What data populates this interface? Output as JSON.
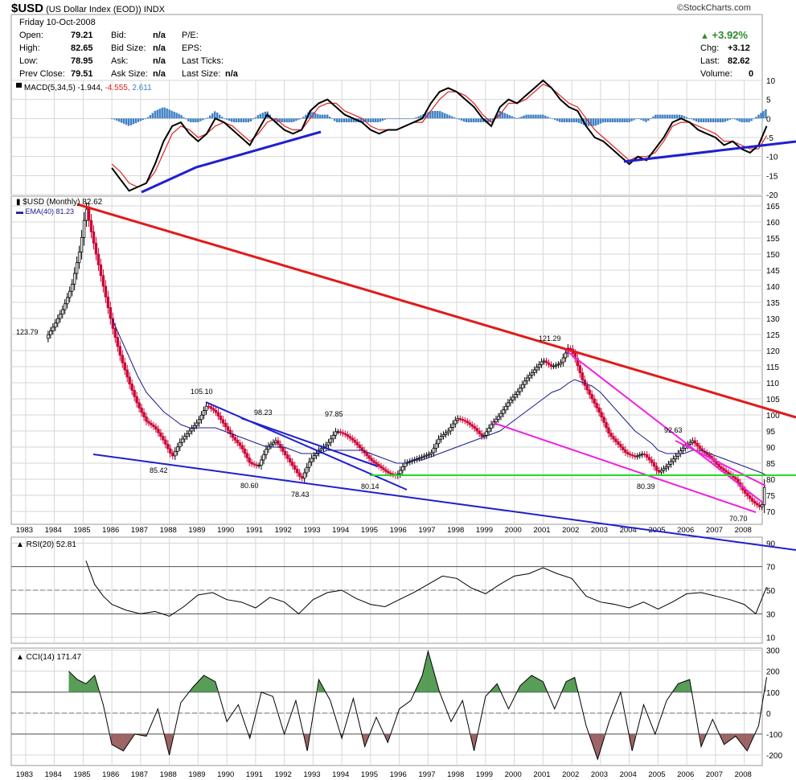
{
  "header": {
    "symbol": "$USD",
    "name": "(US Dollar Index (EOD))",
    "exchange": "INDX",
    "credit": "©StockCharts.com",
    "date": "Friday  10-Oct-2008",
    "quotes": {
      "open_label": "Open:",
      "open": "79.21",
      "high_label": "High:",
      "high": "82.65",
      "low_label": "Low:",
      "low": "78.95",
      "prev_label": "Prev Close:",
      "prev": "79.51",
      "bid_label": "Bid:",
      "bid": "n/a",
      "bidsize_label": "Bid Size:",
      "bidsize": "n/a",
      "ask_label": "Ask:",
      "ask": "n/a",
      "asksize_label": "Ask Size:",
      "asksize": "n/a",
      "pe_label": "P/E:",
      "eps_label": "EPS:",
      "lastticks_label": "Last Ticks:",
      "lastsize_label": "Last Size:",
      "lastsize": "n/a",
      "pct": "+3.92%",
      "chg_label": "Chg:",
      "chg": "+3.12",
      "last_label": "Last:",
      "last": "82.62",
      "volume_label": "Volume:",
      "volume": "0"
    }
  },
  "colors": {
    "grid": "#d6d6d6",
    "up_candle": "#000000",
    "down_candle": "#cc0033",
    "ema": "#1a1a8c",
    "macd_line": "#000000",
    "signal_line": "#dd2222",
    "histogram": "#3d7fc4",
    "trend_blue": "#1f1fcf",
    "trend_red": "#e01b1b",
    "trend_magenta": "#ee22dd",
    "support_green": "#22dd22",
    "cci_fill_pos": "#3b8c3b",
    "cci_fill_neg": "#8c4a4a"
  },
  "chart_data": [
    {
      "type": "line",
      "panel": "MACD",
      "title": "MACD(5,34,5)",
      "values_text": [
        "-1.944",
        "-4.555",
        "2.611"
      ],
      "ylim": [
        -20,
        10
      ],
      "y_ticks": [
        10,
        5,
        0,
        -5,
        -10,
        -15,
        -20
      ],
      "x": [
        1986.0,
        1986.3,
        1986.6,
        1986.9,
        1987.2,
        1987.5,
        1987.8,
        1988.1,
        1988.4,
        1988.7,
        1989.0,
        1989.3,
        1989.6,
        1989.9,
        1990.2,
        1990.5,
        1990.8,
        1991.1,
        1991.4,
        1991.7,
        1992.0,
        1992.3,
        1992.6,
        1992.9,
        1993.2,
        1993.5,
        1993.8,
        1994.1,
        1994.4,
        1994.7,
        1995.0,
        1995.3,
        1995.6,
        1995.9,
        1996.2,
        1996.5,
        1996.8,
        1997.1,
        1997.4,
        1997.7,
        1998.0,
        1998.3,
        1998.6,
        1998.9,
        1999.2,
        1999.5,
        1999.8,
        2000.1,
        2000.4,
        2000.7,
        2001.0,
        2001.3,
        2001.6,
        2001.9,
        2002.2,
        2002.5,
        2002.8,
        2003.1,
        2003.4,
        2003.7,
        2004.0,
        2004.3,
        2004.6,
        2004.9,
        2005.2,
        2005.5,
        2005.8,
        2006.1,
        2006.4,
        2006.7,
        2007.0,
        2007.3,
        2007.6,
        2007.9,
        2008.2,
        2008.5,
        2008.78
      ],
      "series": [
        {
          "name": "MACD",
          "values": [
            -13,
            -16,
            -19,
            -18,
            -17,
            -12,
            -6,
            -2,
            -1,
            -4,
            -6,
            -4,
            0,
            -1,
            -3,
            -5,
            -7,
            -3,
            1,
            -1,
            -3,
            -4,
            -3,
            2,
            4,
            5,
            3,
            1,
            0,
            -1,
            -3,
            -4,
            -3,
            -3,
            -2,
            -1,
            0,
            4,
            7,
            8,
            7,
            5,
            3,
            0,
            -2,
            3,
            5,
            4,
            6,
            8,
            10,
            8,
            5,
            3,
            2,
            -2,
            -5,
            -6,
            -8,
            -10,
            -12,
            -10,
            -11,
            -8,
            -5,
            -1,
            0,
            -1,
            -3,
            -4,
            -5,
            -7,
            -6,
            -8,
            -9,
            -7,
            -2
          ]
        },
        {
          "name": "Signal",
          "values": [
            -12,
            -14,
            -17,
            -18,
            -17,
            -14,
            -9,
            -4,
            -2,
            -3,
            -5,
            -4,
            -2,
            -1,
            -2,
            -4,
            -6,
            -4,
            -1,
            0,
            -2,
            -3,
            -3,
            0,
            3,
            4,
            4,
            2,
            1,
            0,
            -2,
            -3,
            -3,
            -3,
            -2,
            -1,
            -1,
            2,
            5,
            7,
            7,
            6,
            4,
            1,
            -1,
            1,
            4,
            4,
            5,
            7,
            9,
            8,
            6,
            4,
            3,
            0,
            -3,
            -5,
            -7,
            -9,
            -11,
            -10,
            -10,
            -9,
            -6,
            -2,
            -1,
            -1,
            -2,
            -3,
            -4,
            -6,
            -6,
            -7,
            -8,
            -8,
            -4.5
          ]
        },
        {
          "name": "Histogram",
          "values": [
            0,
            -1,
            -2,
            -1,
            0,
            2,
            3,
            2,
            1,
            -1,
            -1,
            0,
            2,
            0,
            -1,
            -1,
            -1,
            1,
            2,
            -1,
            -1,
            -1,
            0,
            2,
            1,
            1,
            -1,
            -1,
            -1,
            -1,
            -1,
            -1,
            0,
            0,
            0,
            0,
            1,
            2,
            2,
            1,
            0,
            -1,
            -1,
            -1,
            -1,
            2,
            1,
            0,
            1,
            1,
            1,
            0,
            -1,
            -1,
            -1,
            -2,
            -2,
            -1,
            -1,
            -1,
            -1,
            0,
            -1,
            1,
            1,
            1,
            1,
            0,
            -1,
            -1,
            -1,
            -1,
            0,
            -1,
            -1,
            1,
            2.6
          ]
        }
      ]
    },
    {
      "type": "line",
      "panel": "Price",
      "title": "$USD (Monthly) 82.62",
      "ema_label": "EMA(40) 81.23",
      "ylim": [
        66,
        168
      ],
      "y_ticks": [
        165,
        160,
        155,
        150,
        145,
        140,
        135,
        130,
        125,
        120,
        115,
        110,
        105,
        100,
        95,
        90,
        85,
        80,
        75,
        70
      ],
      "x_ticks": [
        "1983",
        "1984",
        "1985",
        "1986",
        "1987",
        "1988",
        "1989",
        "1990",
        "1991",
        "1992",
        "1993",
        "1994",
        "1995",
        "1996",
        "1997",
        "1998",
        "1999",
        "2000",
        "2001",
        "2002",
        "2003",
        "2004",
        "2005",
        "2006",
        "2007",
        "2008"
      ],
      "x": [
        1983.7,
        1984.0,
        1984.3,
        1984.6,
        1984.9,
        1985.1,
        1985.4,
        1985.7,
        1986.0,
        1986.3,
        1986.6,
        1986.9,
        1987.2,
        1987.5,
        1987.8,
        1988.1,
        1988.4,
        1988.7,
        1989.0,
        1989.3,
        1989.6,
        1989.9,
        1990.2,
        1990.5,
        1990.8,
        1991.1,
        1991.4,
        1991.7,
        1992.0,
        1992.3,
        1992.6,
        1992.9,
        1993.2,
        1993.5,
        1993.8,
        1994.1,
        1994.4,
        1994.7,
        1995.0,
        1995.3,
        1995.6,
        1995.9,
        1996.2,
        1996.5,
        1996.8,
        1997.1,
        1997.4,
        1997.7,
        1998.0,
        1998.3,
        1998.6,
        1998.9,
        1999.2,
        1999.5,
        1999.8,
        2000.1,
        2000.4,
        2000.7,
        2001.0,
        2001.3,
        2001.6,
        2001.9,
        2002.1,
        2002.4,
        2002.7,
        2003.0,
        2003.3,
        2003.6,
        2003.9,
        2004.2,
        2004.5,
        2004.8,
        2005.0,
        2005.3,
        2005.6,
        2005.9,
        2006.2,
        2006.5,
        2006.8,
        2007.1,
        2007.4,
        2007.7,
        2008.0,
        2008.3,
        2008.6,
        2008.78
      ],
      "series": [
        {
          "name": "$USD",
          "values": [
            123.79,
            128,
            133,
            140,
            152,
            164.7,
            152,
            140,
            128,
            118,
            110,
            103,
            98,
            96,
            92,
            87,
            92,
            95,
            98,
            103,
            101,
            97,
            93,
            90,
            85,
            84,
            90,
            92,
            88,
            84,
            80,
            86,
            89,
            91,
            95,
            94,
            92,
            89,
            86,
            84,
            82,
            81,
            85,
            86,
            87,
            88,
            93,
            95,
            99,
            98,
            96,
            93,
            97,
            100,
            104,
            107,
            111,
            114,
            117,
            115,
            116,
            121.29,
            118,
            110,
            105,
            100,
            94,
            91,
            88,
            87,
            88,
            85,
            82,
            84,
            87,
            90,
            92,
            89,
            87,
            84,
            82,
            80,
            76,
            73,
            71,
            82.62
          ]
        },
        {
          "name": "EMA(40)",
          "values": [
            null,
            null,
            null,
            null,
            null,
            null,
            null,
            null,
            130,
            124,
            118,
            112,
            107,
            104,
            101,
            99,
            97,
            96,
            96,
            96,
            96,
            95,
            94,
            93,
            92,
            91,
            90,
            90,
            90,
            89,
            88,
            88,
            88,
            89,
            89,
            89,
            89,
            89,
            88,
            87,
            86,
            85,
            85,
            86,
            86,
            87,
            88,
            89,
            90,
            91,
            92,
            93,
            94,
            95,
            97,
            99,
            101,
            103,
            105,
            107,
            108,
            110,
            111,
            110,
            109,
            107,
            104,
            101,
            98,
            95,
            93,
            91,
            89,
            88,
            88,
            88,
            89,
            89,
            88,
            87,
            86,
            85,
            84,
            83,
            82,
            81.23
          ]
        }
      ],
      "annotations": [
        "123.79",
        "105.10",
        "98.23",
        "97.85",
        "85.42",
        "80.60",
        "78.43",
        "80.14",
        "121.29",
        "92.63",
        "80.39",
        "70.70"
      ]
    },
    {
      "type": "line",
      "panel": "RSI",
      "title": "RSI(20) 52.81",
      "ylim": [
        5,
        95
      ],
      "y_ticks": [
        90,
        70,
        50,
        30,
        10
      ],
      "x": [
        1985.1,
        1985.4,
        1985.7,
        1986.0,
        1986.5,
        1987.0,
        1987.5,
        1988.0,
        1988.5,
        1989.0,
        1989.5,
        1990.0,
        1990.5,
        1991.0,
        1991.5,
        1992.0,
        1992.5,
        1993.0,
        1993.5,
        1994.0,
        1994.5,
        1995.0,
        1995.5,
        1996.0,
        1996.5,
        1997.0,
        1997.5,
        1998.0,
        1998.5,
        1999.0,
        1999.5,
        2000.0,
        2000.5,
        2001.0,
        2001.5,
        2002.0,
        2002.5,
        2003.0,
        2003.5,
        2004.0,
        2004.5,
        2005.0,
        2005.5,
        2006.0,
        2006.5,
        2007.0,
        2007.5,
        2008.0,
        2008.4,
        2008.78
      ],
      "series": [
        {
          "name": "RSI(20)",
          "values": [
            75,
            55,
            45,
            38,
            33,
            30,
            32,
            28,
            36,
            46,
            48,
            42,
            40,
            35,
            44,
            40,
            30,
            42,
            48,
            50,
            43,
            38,
            36,
            42,
            48,
            55,
            62,
            60,
            52,
            47,
            55,
            62,
            64,
            69,
            64,
            60,
            45,
            40,
            38,
            35,
            40,
            34,
            40,
            47,
            48,
            45,
            42,
            38,
            30,
            52.81
          ]
        }
      ]
    },
    {
      "type": "line",
      "panel": "CCI",
      "title": "CCI(14) 171.47",
      "ylim": [
        -250,
        310
      ],
      "y_ticks": [
        300,
        200,
        100,
        0,
        -100,
        -200
      ],
      "x": [
        1984.5,
        1984.8,
        1985.1,
        1985.4,
        1985.7,
        1986.0,
        1986.4,
        1986.8,
        1987.2,
        1987.6,
        1988.0,
        1988.4,
        1988.8,
        1989.2,
        1989.6,
        1990.0,
        1990.4,
        1990.8,
        1991.2,
        1991.6,
        1992.0,
        1992.4,
        1992.8,
        1993.2,
        1993.6,
        1994.0,
        1994.4,
        1994.8,
        1995.2,
        1995.6,
        1996.0,
        1996.4,
        1996.8,
        1997.0,
        1997.4,
        1997.8,
        1998.2,
        1998.6,
        1999.0,
        1999.4,
        1999.8,
        2000.2,
        2000.6,
        2001.0,
        2001.4,
        2001.8,
        2002.1,
        2002.5,
        2002.9,
        2003.3,
        2003.7,
        2004.1,
        2004.5,
        2004.9,
        2005.3,
        2005.7,
        2006.1,
        2006.5,
        2006.9,
        2007.3,
        2007.7,
        2008.1,
        2008.5,
        2008.78
      ],
      "series": [
        {
          "name": "CCI(14)",
          "values": [
            200,
            160,
            140,
            180,
            40,
            -150,
            -180,
            -100,
            -110,
            20,
            -200,
            50,
            120,
            180,
            150,
            -40,
            40,
            -120,
            100,
            80,
            -100,
            60,
            -180,
            160,
            60,
            -120,
            70,
            -160,
            -20,
            -140,
            20,
            60,
            180,
            295,
            100,
            -40,
            60,
            -180,
            80,
            140,
            20,
            130,
            180,
            150,
            20,
            150,
            170,
            -60,
            -220,
            -40,
            100,
            -180,
            40,
            -100,
            60,
            140,
            160,
            -160,
            -30,
            -150,
            -110,
            -180,
            -60,
            171.47
          ]
        }
      ]
    }
  ]
}
